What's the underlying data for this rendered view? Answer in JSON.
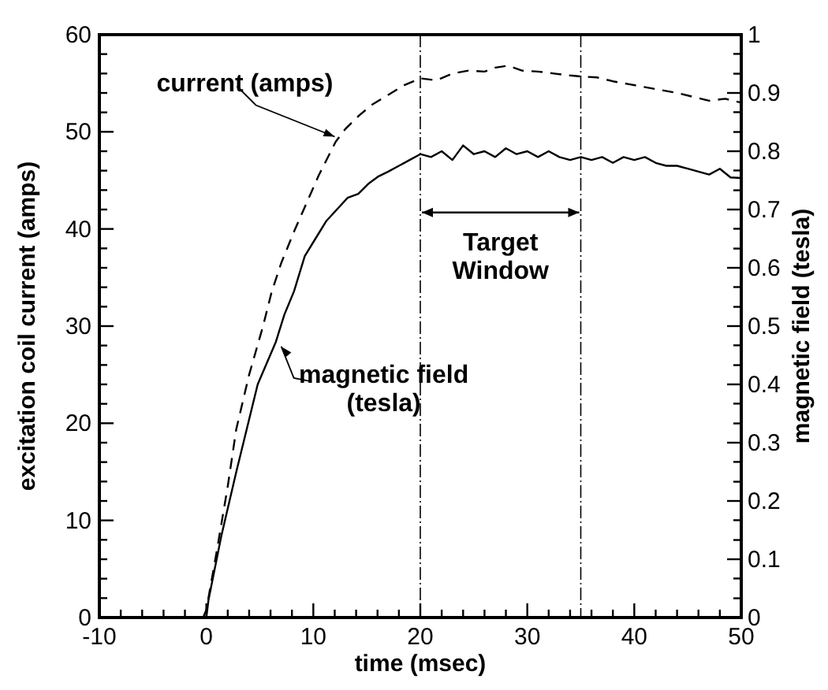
{
  "chart_data": {
    "type": "line",
    "xlabel": "time (msec)",
    "ylabel": "excitation coil current (amps)",
    "y2label": "magnetic field (tesla)",
    "xlim": [
      -10,
      50
    ],
    "xticks": [
      -10,
      {
        "value": -8,
        "label": null
      },
      {
        "value": -6,
        "label": null
      },
      {
        "value": -4,
        "label": null
      },
      {
        "value": -2,
        "label": null
      },
      0,
      {
        "value": 2,
        "label": null
      },
      {
        "value": 4,
        "label": null
      },
      {
        "value": 6,
        "label": null
      },
      {
        "value": 8,
        "label": null
      },
      10,
      {
        "value": 12,
        "label": null
      },
      {
        "value": 14,
        "label": null
      },
      {
        "value": 16,
        "label": null
      },
      {
        "value": 18,
        "label": null
      },
      20,
      {
        "value": 22,
        "label": null
      },
      {
        "value": 24,
        "label": null
      },
      {
        "value": 26,
        "label": null
      },
      {
        "value": 28,
        "label": null
      },
      30,
      {
        "value": 32,
        "label": null
      },
      {
        "value": 34,
        "label": null
      },
      {
        "value": 36,
        "label": null
      },
      {
        "value": 38,
        "label": null
      },
      40,
      {
        "value": 42,
        "label": null
      },
      {
        "value": 44,
        "label": null
      },
      {
        "value": 46,
        "label": null
      },
      {
        "value": 48,
        "label": null
      },
      50
    ],
    "ylim": [
      0,
      60
    ],
    "yticks": [
      0,
      {
        "value": 2,
        "label": null
      },
      {
        "value": 4,
        "label": null
      },
      {
        "value": 6,
        "label": null
      },
      {
        "value": 8,
        "label": null
      },
      10,
      {
        "value": 12,
        "label": null
      },
      {
        "value": 14,
        "label": null
      },
      {
        "value": 16,
        "label": null
      },
      {
        "value": 18,
        "label": null
      },
      20,
      {
        "value": 22,
        "label": null
      },
      {
        "value": 24,
        "label": null
      },
      {
        "value": 26,
        "label": null
      },
      {
        "value": 28,
        "label": null
      },
      30,
      {
        "value": 32,
        "label": null
      },
      {
        "value": 34,
        "label": null
      },
      {
        "value": 36,
        "label": null
      },
      {
        "value": 38,
        "label": null
      },
      40,
      {
        "value": 42,
        "label": null
      },
      {
        "value": 44,
        "label": null
      },
      {
        "value": 46,
        "label": null
      },
      {
        "value": 48,
        "label": null
      },
      50,
      {
        "value": 52,
        "label": null
      },
      {
        "value": 54,
        "label": null
      },
      {
        "value": 56,
        "label": null
      },
      {
        "value": 58,
        "label": null
      },
      60
    ],
    "y2lim": [
      0,
      1
    ],
    "y2ticks": [
      0,
      {
        "value": 0.033,
        "label": null
      },
      {
        "value": 0.067,
        "label": null
      },
      0.1,
      {
        "value": 0.133,
        "label": null
      },
      {
        "value": 0.167,
        "label": null
      },
      0.2,
      {
        "value": 0.233,
        "label": null
      },
      {
        "value": 0.267,
        "label": null
      },
      0.3,
      {
        "value": 0.333,
        "label": null
      },
      {
        "value": 0.367,
        "label": null
      },
      0.4,
      {
        "value": 0.433,
        "label": null
      },
      {
        "value": 0.467,
        "label": null
      },
      0.5,
      {
        "value": 0.533,
        "label": null
      },
      {
        "value": 0.567,
        "label": null
      },
      0.6,
      {
        "value": 0.633,
        "label": null
      },
      {
        "value": 0.667,
        "label": null
      },
      0.7,
      {
        "value": 0.733,
        "label": null
      },
      {
        "value": 0.767,
        "label": null
      },
      0.8,
      {
        "value": 0.833,
        "label": null
      },
      {
        "value": 0.867,
        "label": null
      },
      0.9,
      {
        "value": 0.933,
        "label": null
      },
      {
        "value": 0.967,
        "label": null
      },
      1
    ],
    "marker": "none",
    "series": [
      {
        "color": "#000000",
        "line_style": "dashed",
        "x": [
          -0.3,
          0,
          1,
          2,
          2.8,
          4,
          5.3,
          6.1,
          7,
          8.3,
          9.5,
          10.5,
          12.1,
          13,
          14.3,
          15.5,
          17,
          18.5,
          20,
          21.5,
          23,
          24.5,
          26,
          27,
          28.2,
          29.5,
          31,
          32.5,
          34,
          35,
          36.5,
          38,
          39.5,
          41,
          42.5,
          44,
          45.5,
          47,
          48.5,
          50
        ],
        "values": [
          0,
          0.8,
          7,
          13.5,
          19.4,
          25,
          30,
          33.5,
          36.5,
          40,
          43,
          45.5,
          49,
          50.3,
          51.7,
          52.8,
          53.8,
          54.8,
          55.5,
          55.3,
          56,
          56.3,
          56.2,
          56.6,
          56.8,
          56.3,
          56.2,
          56,
          55.8,
          55.7,
          55.6,
          55.2,
          54.9,
          54.6,
          54.3,
          54,
          53.6,
          53.2,
          53.4,
          53
        ]
      },
      {
        "color": "#000000",
        "line_style": "solid",
        "axis": "y2",
        "x": [
          0,
          0.2,
          1.4,
          2.8,
          4.8,
          6.5,
          7.3,
          8.2,
          9.2,
          10.2,
          11.2,
          12.2,
          13.2,
          14.2,
          15.2,
          16.1,
          17,
          18,
          19,
          20,
          21,
          22,
          23,
          24,
          25,
          26,
          27,
          28,
          29,
          30,
          31,
          32,
          33,
          34,
          35,
          36,
          37,
          38,
          39,
          40,
          41,
          42,
          43,
          44,
          45,
          46,
          47,
          48,
          49,
          50
        ],
        "values": [
          0,
          0.03,
          0.14,
          0.25,
          0.4,
          0.473,
          0.52,
          0.56,
          0.62,
          0.65,
          0.68,
          0.7,
          0.72,
          0.727,
          0.745,
          0.757,
          0.765,
          0.775,
          0.785,
          0.795,
          0.79,
          0.8,
          0.785,
          0.81,
          0.795,
          0.8,
          0.79,
          0.805,
          0.795,
          0.8,
          0.79,
          0.8,
          0.79,
          0.785,
          0.79,
          0.785,
          0.79,
          0.78,
          0.79,
          0.785,
          0.79,
          0.78,
          0.775,
          0.775,
          0.77,
          0.765,
          0.76,
          0.77,
          0.755,
          0.754
        ]
      }
    ],
    "ref_lines": [
      {
        "axis": "x",
        "value": 20,
        "color": "#000000"
      },
      {
        "axis": "x",
        "value": 35,
        "color": "#000000"
      }
    ],
    "annotations": [
      {
        "text": "current (amps)",
        "x": 12,
        "y": 49.5
      },
      {
        "text": "magnetic field\n(tesla)",
        "x": 7,
        "y": 27.9
      },
      "Target\nWindow"
    ]
  }
}
